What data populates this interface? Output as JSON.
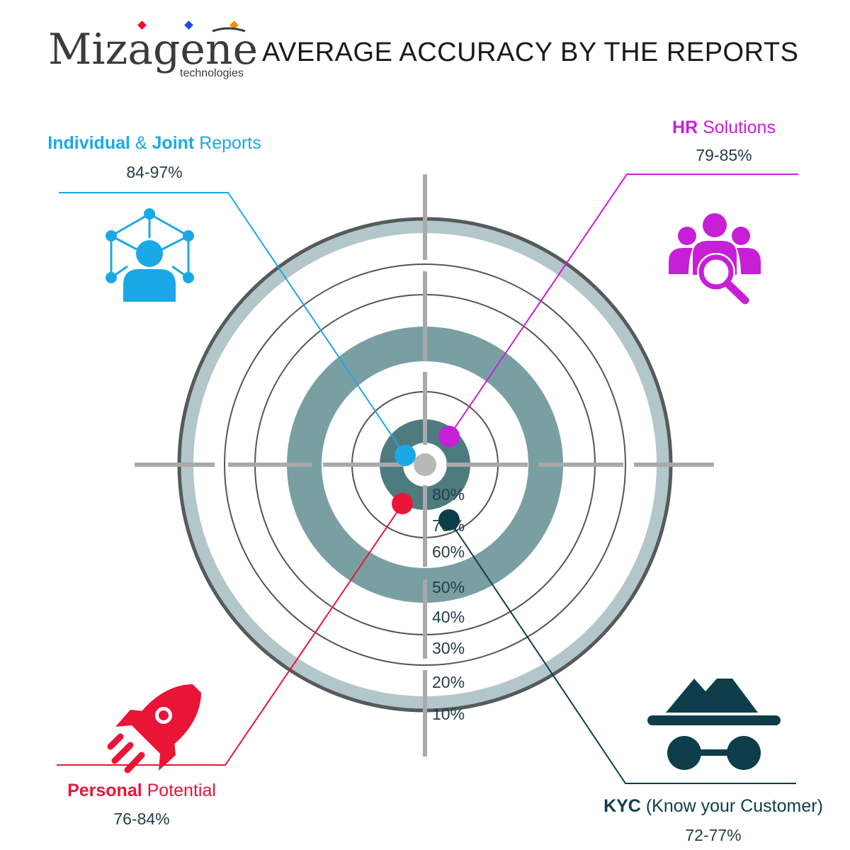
{
  "brand": {
    "name": "Mizagene",
    "tagline": "technologies",
    "dot_colors": [
      "#e8112d",
      "#1d4fd8",
      "#f29100"
    ]
  },
  "title": "AVERAGE ACCURACY BY THE REPORTS",
  "ring_labels": [
    "80%",
    "70%",
    "60%",
    "50%",
    "40%",
    "30%",
    "20%",
    "10%"
  ],
  "categories": [
    {
      "key": "individual",
      "bold1": "Individual",
      "mid": " & ",
      "bold2": "Joint",
      "rest": " Reports",
      "range": "84-97%",
      "color": "#1ba8e8",
      "icon": "network-person-icon"
    },
    {
      "key": "hr",
      "bold1": "HR",
      "rest": " Solutions",
      "range": "79-85%",
      "color": "#c71fd6",
      "icon": "people-search-icon"
    },
    {
      "key": "personal",
      "bold1": "Personal",
      "rest": " Potential",
      "range": "76-84%",
      "color": "#ea1436",
      "icon": "rocket-icon"
    },
    {
      "key": "kyc",
      "bold1": "KYC",
      "rest": " (Know your Customer)",
      "range": "72-77%",
      "color": "#0e3d4a",
      "icon": "spy-icon"
    }
  ],
  "colors": {
    "outer_band": "#b3c6c9",
    "mid_band": "#7a9fa3",
    "inner_band": "#4d7b80",
    "ring_line": "#555555",
    "crosshair": "#aaaaaa",
    "bullseye": "#b8b8b8"
  }
}
